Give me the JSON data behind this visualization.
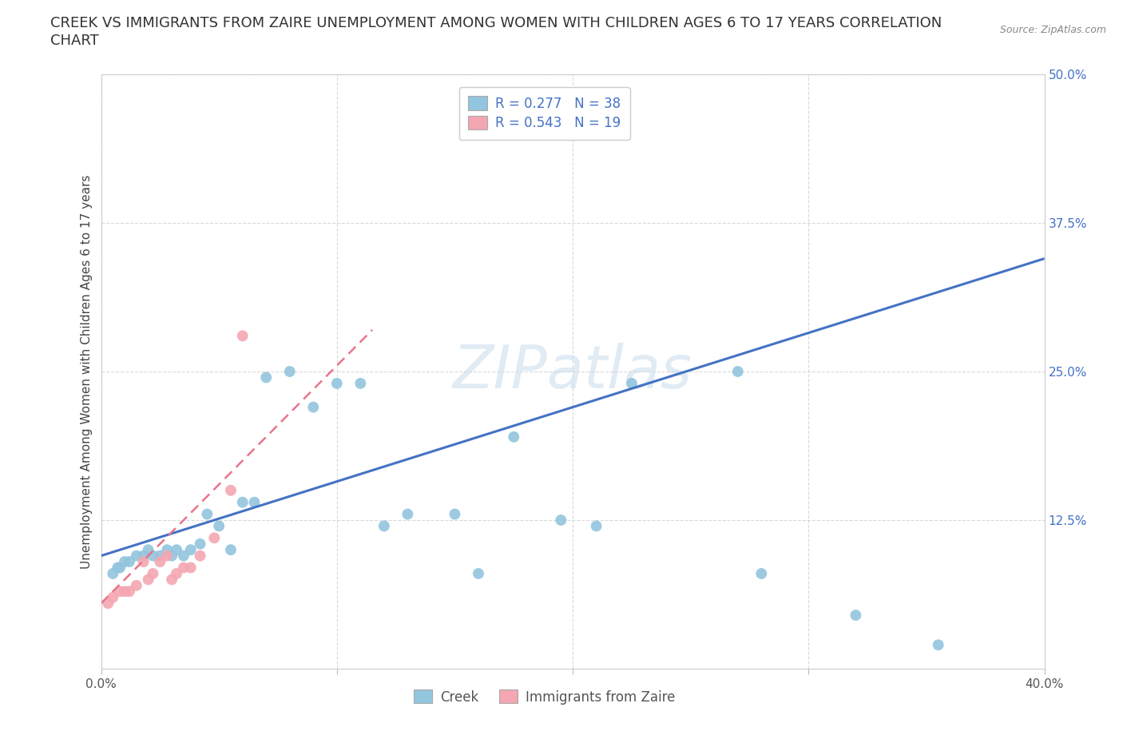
{
  "title_line1": "CREEK VS IMMIGRANTS FROM ZAIRE UNEMPLOYMENT AMONG WOMEN WITH CHILDREN AGES 6 TO 17 YEARS CORRELATION",
  "title_line2": "CHART",
  "source_text": "Source: ZipAtlas.com",
  "ylabel": "Unemployment Among Women with Children Ages 6 to 17 years",
  "xlim": [
    0.0,
    0.4
  ],
  "ylim": [
    0.0,
    0.5
  ],
  "xtick_vals": [
    0.0,
    0.1,
    0.2,
    0.3,
    0.4
  ],
  "xtick_labels": [
    "0.0%",
    "",
    "",
    "",
    "40.0%"
  ],
  "ytick_vals": [
    0.0,
    0.125,
    0.25,
    0.375,
    0.5
  ],
  "ytick_labels": [
    "",
    "12.5%",
    "25.0%",
    "37.5%",
    "50.0%"
  ],
  "creek_color": "#92c5de",
  "zaire_color": "#f4a6b2",
  "creek_r": 0.277,
  "creek_n": 38,
  "zaire_r": 0.543,
  "zaire_n": 19,
  "creek_line_color": "#4472c4",
  "zaire_line_color": "#e8748a",
  "watermark": "ZIPatlas",
  "legend_label_creek": "Creek",
  "legend_label_zaire": "Immigrants from Zaire",
  "creek_x": [
    0.005,
    0.007,
    0.008,
    0.01,
    0.012,
    0.015,
    0.018,
    0.02,
    0.022,
    0.025,
    0.028,
    0.03,
    0.032,
    0.035,
    0.038,
    0.042,
    0.045,
    0.05,
    0.055,
    0.06,
    0.065,
    0.07,
    0.08,
    0.09,
    0.1,
    0.11,
    0.12,
    0.13,
    0.15,
    0.16,
    0.175,
    0.195,
    0.21,
    0.225,
    0.27,
    0.28,
    0.32,
    0.355
  ],
  "creek_y": [
    0.08,
    0.085,
    0.085,
    0.09,
    0.09,
    0.095,
    0.095,
    0.1,
    0.095,
    0.095,
    0.1,
    0.095,
    0.1,
    0.095,
    0.1,
    0.105,
    0.13,
    0.12,
    0.1,
    0.14,
    0.14,
    0.245,
    0.25,
    0.22,
    0.24,
    0.24,
    0.12,
    0.13,
    0.13,
    0.08,
    0.195,
    0.125,
    0.12,
    0.24,
    0.25,
    0.08,
    0.045,
    0.02
  ],
  "zaire_x": [
    0.003,
    0.005,
    0.008,
    0.01,
    0.012,
    0.015,
    0.018,
    0.02,
    0.022,
    0.025,
    0.028,
    0.03,
    0.032,
    0.035,
    0.038,
    0.042,
    0.048,
    0.055,
    0.06
  ],
  "zaire_y": [
    0.055,
    0.06,
    0.065,
    0.065,
    0.065,
    0.07,
    0.09,
    0.075,
    0.08,
    0.09,
    0.095,
    0.075,
    0.08,
    0.085,
    0.085,
    0.095,
    0.11,
    0.15,
    0.28
  ],
  "grid_color": "#d0d0d0",
  "bg_color": "#ffffff",
  "title_fontsize": 13,
  "axis_label_fontsize": 11,
  "tick_fontsize": 11,
  "legend_fontsize": 12,
  "marker_size": 10,
  "creek_line_x0": 0.0,
  "creek_line_y0": 0.095,
  "creek_line_x1": 0.4,
  "creek_line_y1": 0.345,
  "zaire_line_x0": 0.0,
  "zaire_line_y0": 0.055,
  "zaire_line_x1": 0.115,
  "zaire_line_y1": 0.285
}
